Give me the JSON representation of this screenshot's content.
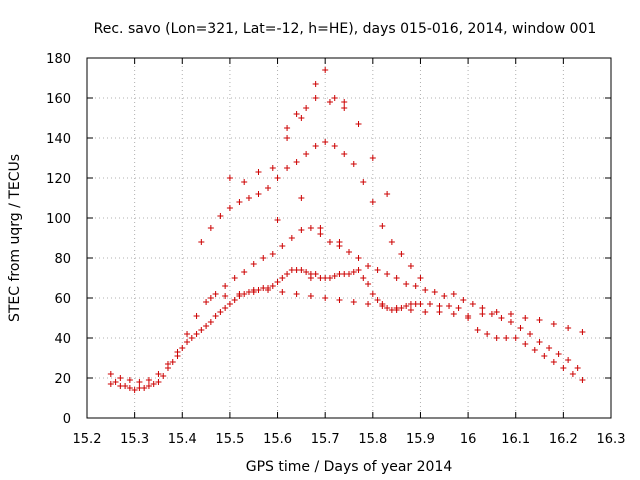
{
  "chart_data": {
    "type": "scatter",
    "title": "Rec. savo (Lon=321, Lat=-12, h=HE), days 015-016, 2014, window 001",
    "xlabel": "GPS time / Days of year 2014",
    "ylabel": "STEC from uqrg / TECUs",
    "xlim": [
      15.2,
      16.3
    ],
    "ylim": [
      0,
      180
    ],
    "xticks": [
      "15.2",
      "15.3",
      "15.4",
      "15.5",
      "15.6",
      "15.7",
      "15.8",
      "15.9",
      "16",
      "16.1",
      "16.2",
      "16.3"
    ],
    "xtick_values": [
      15.2,
      15.3,
      15.4,
      15.5,
      15.6,
      15.7,
      15.8,
      15.9,
      16.0,
      16.1,
      16.2,
      16.3
    ],
    "yticks": [
      "0",
      "20",
      "40",
      "60",
      "80",
      "100",
      "120",
      "140",
      "160",
      "180"
    ],
    "ytick_values": [
      0,
      20,
      40,
      60,
      80,
      100,
      120,
      140,
      160,
      180
    ],
    "grid": true,
    "marker": "+",
    "color": "#cc0000",
    "series": [
      {
        "name": "STEC",
        "x": [
          15.25,
          15.26,
          15.27,
          15.28,
          15.29,
          15.3,
          15.31,
          15.32,
          15.33,
          15.34,
          15.35,
          15.36,
          15.37,
          15.38,
          15.39,
          15.4,
          15.41,
          15.42,
          15.43,
          15.44,
          15.45,
          15.46,
          15.47,
          15.48,
          15.49,
          15.5,
          15.51,
          15.52,
          15.53,
          15.54,
          15.55,
          15.56,
          15.57,
          15.58,
          15.59,
          15.6,
          15.61,
          15.62,
          15.63,
          15.64,
          15.65,
          15.66,
          15.67,
          15.68,
          15.69,
          15.7,
          15.71,
          15.72,
          15.73,
          15.74,
          15.75,
          15.76,
          15.77,
          15.78,
          15.79,
          15.8,
          15.81,
          15.82,
          15.83,
          15.84,
          15.85,
          15.86,
          15.87,
          15.88,
          15.89,
          15.9,
          15.92,
          15.94,
          15.96,
          15.98,
          16.0,
          16.02,
          16.04,
          16.06,
          16.08,
          16.1,
          16.12,
          16.14,
          16.16,
          16.18,
          16.2,
          16.22,
          16.24,
          15.25,
          15.27,
          15.29,
          15.31,
          15.33,
          15.35,
          15.37,
          15.39,
          15.41,
          15.43,
          15.45,
          15.47,
          15.49,
          15.51,
          15.53,
          15.55,
          15.57,
          15.59,
          15.61,
          15.63,
          15.65,
          15.67,
          15.69,
          15.71,
          15.73,
          15.75,
          15.77,
          15.79,
          15.81,
          15.83,
          15.85,
          15.87,
          15.89,
          15.91,
          15.93,
          15.95,
          15.97,
          15.99,
          16.01,
          16.03,
          16.05,
          16.07,
          16.09,
          16.11,
          16.13,
          16.15,
          16.17,
          16.19,
          16.21,
          16.23,
          15.44,
          15.46,
          15.48,
          15.5,
          15.52,
          15.54,
          15.56,
          15.58,
          15.6,
          15.62,
          15.64,
          15.66,
          15.68,
          15.7,
          15.72,
          15.74,
          15.76,
          15.78,
          15.8,
          15.82,
          15.84,
          15.86,
          15.88,
          15.9,
          15.5,
          15.53,
          15.56,
          15.59,
          15.62,
          15.65,
          15.68,
          15.71,
          15.74,
          15.77,
          15.8,
          15.83,
          15.46,
          15.49,
          15.52,
          15.55,
          15.58,
          15.61,
          15.64,
          15.67,
          15.7,
          15.73,
          15.76,
          15.79,
          15.82,
          15.85,
          15.88,
          15.91,
          15.94,
          15.97,
          16.0,
          16.03,
          16.06,
          16.09,
          16.12,
          16.15,
          16.18,
          16.21,
          16.24,
          15.62,
          15.64,
          15.66,
          15.68,
          15.7,
          15.72,
          15.74,
          15.6,
          15.65,
          15.69,
          15.73,
          15.67
        ],
        "y": [
          17,
          18,
          16,
          16,
          15,
          14,
          15,
          15,
          16,
          17,
          18,
          21,
          25,
          28,
          31,
          35,
          38,
          40,
          42,
          44,
          46,
          48,
          51,
          53,
          55,
          57,
          59,
          61,
          62,
          63,
          64,
          64,
          65,
          65,
          66,
          68,
          70,
          72,
          74,
          74,
          74,
          73,
          72,
          72,
          70,
          70,
          70,
          71,
          72,
          72,
          72,
          73,
          74,
          70,
          67,
          62,
          59,
          57,
          55,
          54,
          54,
          55,
          56,
          57,
          57,
          57,
          57,
          56,
          56,
          55,
          50,
          44,
          42,
          40,
          40,
          40,
          37,
          34,
          31,
          28,
          25,
          22,
          19,
          22,
          20,
          19,
          18,
          19,
          22,
          27,
          33,
          42,
          51,
          58,
          62,
          66,
          70,
          73,
          77,
          80,
          82,
          86,
          90,
          94,
          95,
          92,
          88,
          86,
          83,
          80,
          76,
          74,
          72,
          70,
          67,
          66,
          64,
          63,
          61,
          62,
          59,
          57,
          55,
          52,
          50,
          48,
          45,
          42,
          38,
          35,
          32,
          29,
          25,
          88,
          95,
          101,
          105,
          108,
          110,
          112,
          115,
          120,
          125,
          128,
          132,
          136,
          138,
          136,
          132,
          127,
          118,
          108,
          96,
          88,
          82,
          76,
          70,
          120,
          118,
          123,
          125,
          140,
          150,
          160,
          158,
          155,
          147,
          130,
          112,
          60,
          61,
          62,
          63,
          64,
          63,
          62,
          61,
          60,
          59,
          58,
          57,
          56,
          55,
          54,
          53,
          53,
          52,
          51,
          52,
          53,
          52,
          50,
          49,
          47,
          45,
          43,
          145,
          152,
          155,
          167,
          174,
          160,
          158,
          99,
          110,
          95,
          88,
          70
        ]
      }
    ]
  }
}
